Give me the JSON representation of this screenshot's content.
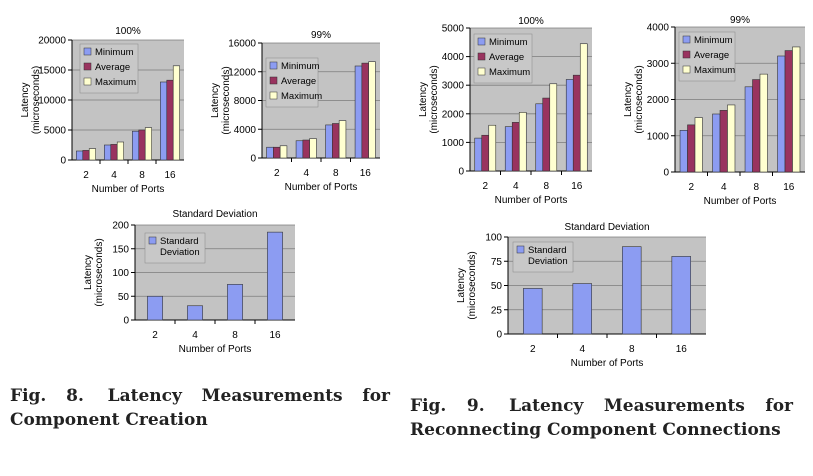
{
  "colors": {
    "minimum": "#8c9cf2",
    "average": "#99335f",
    "maximum": "#ffffd0",
    "stddev": "#8c9cf2",
    "plot_bg": "#c3c3c3",
    "frame": "#9a9a9a"
  },
  "captions": {
    "fig8_lead": "Fig. 8.",
    "fig8_text": "Latency Measurements for Component Creation",
    "fig9_lead": "Fig. 9.",
    "fig9_text": "Latency Measurements for Reconnecting Component Connections"
  },
  "chart_data": [
    {
      "type": "bar",
      "title": "100%",
      "xlabel": "Number of Ports",
      "ylabel": [
        "Latency",
        "(microseconds)"
      ],
      "categories": [
        "2",
        "4",
        "8",
        "16"
      ],
      "ylim": [
        0,
        20000
      ],
      "ticks": [
        0,
        5000,
        10000,
        15000,
        20000
      ],
      "series": [
        {
          "name": "Minimum",
          "color_key": "minimum",
          "values": [
            1500,
            2500,
            4800,
            13000
          ]
        },
        {
          "name": "Average",
          "color_key": "average",
          "values": [
            1600,
            2600,
            5000,
            13300
          ]
        },
        {
          "name": "Maximum",
          "color_key": "maximum",
          "values": [
            1900,
            3000,
            5400,
            15700
          ]
        }
      ]
    },
    {
      "type": "bar",
      "title": "99%",
      "xlabel": "Number of Ports",
      "ylabel": [
        "Latency",
        "(microseconds)"
      ],
      "categories": [
        "2",
        "4",
        "8",
        "16"
      ],
      "ylim": [
        0,
        16000
      ],
      "ticks": [
        0,
        4000,
        8000,
        12000,
        16000
      ],
      "series": [
        {
          "name": "Minimum",
          "color_key": "minimum",
          "values": [
            1500,
            2400,
            4600,
            12800
          ]
        },
        {
          "name": "Average",
          "color_key": "average",
          "values": [
            1500,
            2500,
            4800,
            13200
          ]
        },
        {
          "name": "Maximum",
          "color_key": "maximum",
          "values": [
            1700,
            2700,
            5200,
            13400
          ]
        }
      ]
    },
    {
      "type": "bar",
      "title": "Standard Deviation",
      "xlabel": "Number of Ports",
      "ylabel": [
        "Latency",
        "(microseconds)"
      ],
      "categories": [
        "2",
        "4",
        "8",
        "16"
      ],
      "ylim": [
        0,
        200
      ],
      "ticks": [
        0,
        50,
        100,
        150,
        200
      ],
      "series": [
        {
          "name": "Standard Deviation",
          "color_key": "stddev",
          "values": [
            50,
            30,
            75,
            185
          ]
        }
      ]
    },
    {
      "type": "bar",
      "title": "100%",
      "xlabel": "Number of Ports",
      "ylabel": [
        "Latency",
        "(microseconds)"
      ],
      "categories": [
        "2",
        "4",
        "8",
        "16"
      ],
      "ylim": [
        0,
        5000
      ],
      "ticks": [
        0,
        1000,
        2000,
        3000,
        4000,
        5000
      ],
      "series": [
        {
          "name": "Minimum",
          "color_key": "minimum",
          "values": [
            1150,
            1550,
            2350,
            3200
          ]
        },
        {
          "name": "Average",
          "color_key": "average",
          "values": [
            1250,
            1700,
            2550,
            3350
          ]
        },
        {
          "name": "Maximum",
          "color_key": "maximum",
          "values": [
            1600,
            2050,
            3050,
            4450
          ]
        }
      ]
    },
    {
      "type": "bar",
      "title": "99%",
      "xlabel": "Number of Ports",
      "ylabel": [
        "Latency",
        "(microseconds)"
      ],
      "categories": [
        "2",
        "4",
        "8",
        "16"
      ],
      "ylim": [
        0,
        4000
      ],
      "ticks": [
        0,
        1000,
        2000,
        3000,
        4000
      ],
      "series": [
        {
          "name": "Minimum",
          "color_key": "minimum",
          "values": [
            1150,
            1600,
            2350,
            3200
          ]
        },
        {
          "name": "Average",
          "color_key": "average",
          "values": [
            1300,
            1700,
            2550,
            3350
          ]
        },
        {
          "name": "Maximum",
          "color_key": "maximum",
          "values": [
            1500,
            1850,
            2700,
            3450
          ]
        }
      ]
    },
    {
      "type": "bar",
      "title": "Standard Deviation",
      "xlabel": "Number of Ports",
      "ylabel": [
        "Latency",
        "(microseconds)"
      ],
      "categories": [
        "2",
        "4",
        "8",
        "16"
      ],
      "ylim": [
        0,
        100
      ],
      "ticks": [
        0,
        25,
        50,
        75,
        100
      ],
      "series": [
        {
          "name": "Standard Deviation",
          "color_key": "stddev",
          "values": [
            47,
            52,
            90,
            80
          ]
        }
      ]
    }
  ]
}
